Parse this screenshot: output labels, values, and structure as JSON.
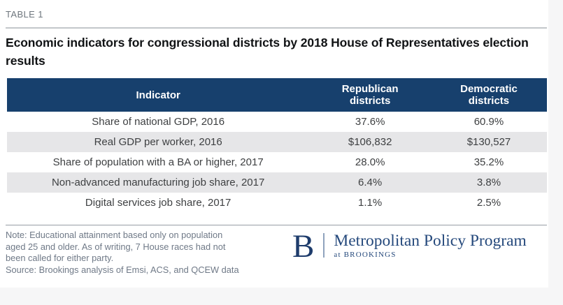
{
  "page": {
    "table_label": "TABLE 1",
    "title": "Economic indicators for congressional districts by 2018 House of Representatives election results"
  },
  "chart_data": {
    "type": "table",
    "title": "Economic indicators for congressional districts by 2018 House of Representatives election results",
    "columns": [
      {
        "id": "indicator",
        "label": "Indicator",
        "label_line2": ""
      },
      {
        "id": "republican",
        "label": "Republican",
        "label_line2": "districts"
      },
      {
        "id": "democratic",
        "label": "Democratic",
        "label_line2": "districts"
      }
    ],
    "rows": [
      {
        "indicator": "Share of national GDP, 2016",
        "republican": "37.6%",
        "democratic": "60.9%"
      },
      {
        "indicator": "Real GDP per worker, 2016",
        "republican": "$106,832",
        "democratic": "$130,527"
      },
      {
        "indicator": "Share of population with a BA or higher, 2017",
        "republican": "28.0%",
        "democratic": "35.2%"
      },
      {
        "indicator": "Non-advanced manufacturing job share, 2017",
        "republican": "6.4%",
        "democratic": "3.8%"
      },
      {
        "indicator": "Digital services job share, 2017",
        "republican": "1.1%",
        "democratic": "2.5%"
      }
    ]
  },
  "note": {
    "lines": [
      "Note: Educational attainment based only on population",
      "aged 25 and older. As of writing, 7 House races had not",
      "been called for either party.",
      "Source: Brookings analysis of Emsi, ACS, and QCEW data"
    ]
  },
  "logo": {
    "monogram": "B",
    "program": "Metropolitan Policy Program",
    "tagline": "at BROOKINGS"
  },
  "colors": {
    "header_bg": "#17406d",
    "row_alt_bg": "#e6e6e8",
    "logo_navy": "#25497c",
    "logo_monogram_navy": "#1e3c6c",
    "page_edge_bg": "#f6f6f7"
  }
}
